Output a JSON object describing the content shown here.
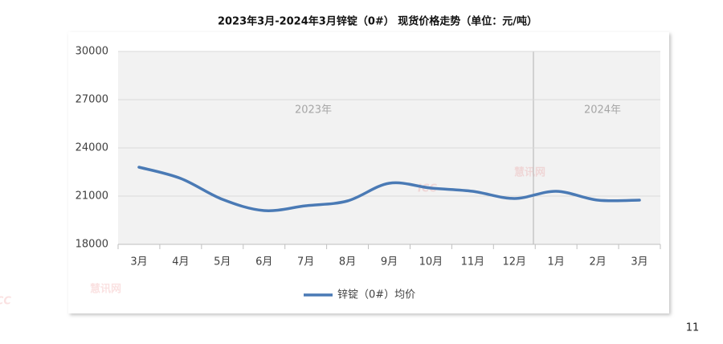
{
  "chart_data": {
    "type": "line",
    "title": "2023年3月-2024年3月锌锭（0#） 现货价格走势（单位：元/吨）",
    "categories": [
      "3月",
      "4月",
      "5月",
      "6月",
      "7月",
      "8月",
      "9月",
      "10月",
      "11月",
      "12月",
      "1月",
      "2月",
      "3月"
    ],
    "series": [
      {
        "name": "锌锭（0#）均价",
        "color": "#4a7ab5",
        "values": [
          22800,
          22100,
          20800,
          20100,
          20400,
          20700,
          21800,
          21500,
          21300,
          20850,
          21300,
          20750,
          20750
        ]
      }
    ],
    "ylim": [
      18000,
      30000
    ],
    "yticks": [
      18000,
      21000,
      24000,
      27000,
      30000
    ],
    "grid": true,
    "annotations": [
      "2023年",
      "2024年"
    ],
    "legend": "bottom"
  },
  "page_number": "11",
  "watermark": {
    "brand": "ICC",
    "name": "慧讯网"
  }
}
